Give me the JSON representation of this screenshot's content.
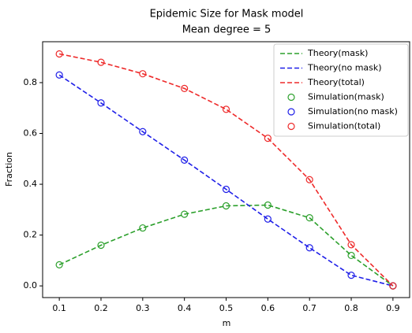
{
  "chart_data": {
    "type": "line",
    "title": "Epidemic Size for Mask model",
    "subtitle": "Mean degree = 5",
    "x_label": "m",
    "y_label": "Fraction",
    "x": [
      0.1,
      0.2,
      0.3,
      0.4,
      0.5,
      0.6,
      0.7,
      0.8,
      0.9
    ],
    "series": [
      {
        "name": "Theory(mask)",
        "color": "#2ca02c",
        "style": "dashed",
        "values": [
          0.083,
          0.16,
          0.228,
          0.282,
          0.315,
          0.318,
          0.268,
          0.12,
          0.0
        ]
      },
      {
        "name": "Theory(no mask)",
        "color": "#1f1fe8",
        "style": "dashed",
        "values": [
          0.83,
          0.72,
          0.607,
          0.495,
          0.38,
          0.263,
          0.15,
          0.042,
          0.0
        ]
      },
      {
        "name": "Theory(total)",
        "color": "#ee2a2a",
        "style": "dashed",
        "values": [
          0.913,
          0.88,
          0.835,
          0.777,
          0.695,
          0.581,
          0.418,
          0.162,
          0.0
        ]
      },
      {
        "name": "Simulation(mask)",
        "color": "#2ca02c",
        "style": "marker",
        "values": [
          0.083,
          0.16,
          0.228,
          0.282,
          0.315,
          0.318,
          0.268,
          0.12,
          0.0
        ]
      },
      {
        "name": "Simulation(no mask)",
        "color": "#1f1fe8",
        "style": "marker",
        "values": [
          0.83,
          0.72,
          0.607,
          0.495,
          0.38,
          0.263,
          0.15,
          0.042,
          0.0
        ]
      },
      {
        "name": "Simulation(total)",
        "color": "#ee2a2a",
        "style": "marker",
        "values": [
          0.913,
          0.88,
          0.835,
          0.777,
          0.695,
          0.581,
          0.418,
          0.162,
          0.0
        ]
      }
    ],
    "xlim": [
      0.06,
      0.94
    ],
    "ylim": [
      -0.046,
      0.961
    ],
    "xticks": [
      0.1,
      0.2,
      0.3,
      0.4,
      0.5,
      0.6,
      0.7,
      0.8,
      0.9
    ],
    "yticks": [
      {
        "value": 0,
        "label": "0.0"
      },
      0.2,
      0.4,
      0.6,
      0.8
    ],
    "legend": "upper right",
    "grid": false
  }
}
